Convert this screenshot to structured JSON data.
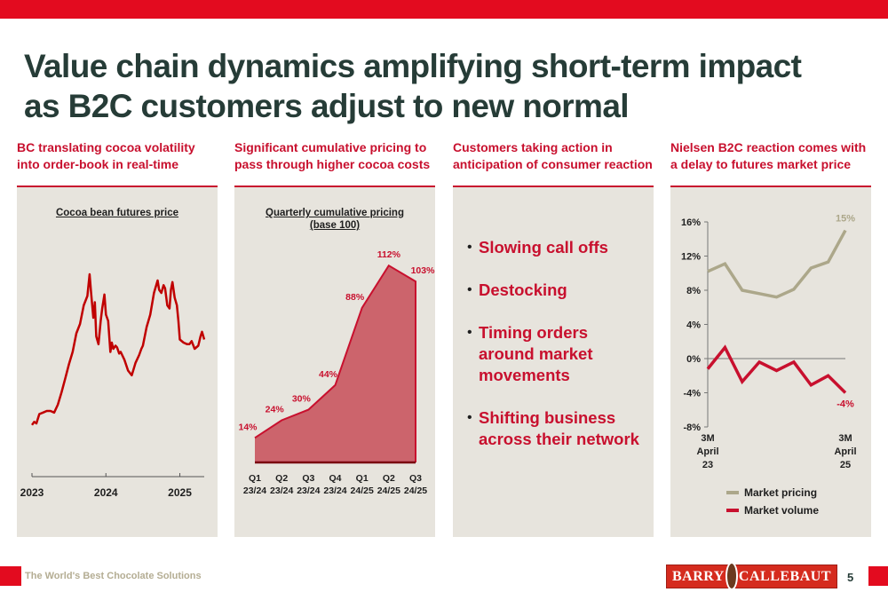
{
  "header": {
    "title_line1": "Value chain dynamics amplifying short-term impact",
    "title_line2": "as B2C customers adjust to new normal",
    "accent_color": "#e30b1f"
  },
  "columns": [
    {
      "heading_line1": "BC translating cocoa volatility",
      "heading_line2": "into order-book in real-time"
    },
    {
      "heading_line1": "Significant cumulative pricing to",
      "heading_line2": "pass through higher cocoa costs"
    },
    {
      "heading_line1": "Customers taking action in",
      "heading_line2": "anticipation of consumer reaction"
    },
    {
      "heading_line1": "Nielsen B2C reaction comes with",
      "heading_line2": "a delay to futures market price"
    }
  ],
  "bullets": [
    {
      "line1": "Slowing call offs"
    },
    {
      "line1": "Destocking"
    },
    {
      "line1": "Timing orders",
      "line2": "around market",
      "line3": "movements"
    },
    {
      "line1": "Shifting business",
      "line2": "across their network"
    }
  ],
  "chart_data": [
    {
      "type": "line",
      "title": "Cocoa bean futures price",
      "xlabel": "",
      "ylabel": "",
      "x_tick_labels": [
        "2023",
        "2024",
        "2025"
      ],
      "x_range": [
        2023.0,
        2025.33
      ],
      "y_axis_shown": false,
      "note": "Relative price index (no y-axis shown); values estimated from line shape, 0 = low, 100 = peak",
      "series": [
        {
          "name": "Cocoa bean futures",
          "color": "#c00000",
          "x": [
            2023.0,
            2023.03,
            2023.06,
            2023.1,
            2023.15,
            2023.2,
            2023.25,
            2023.3,
            2023.35,
            2023.4,
            2023.45,
            2023.5,
            2023.55,
            2023.6,
            2023.65,
            2023.7,
            2023.75,
            2023.78,
            2023.8,
            2023.83,
            2023.85,
            2023.87,
            2023.9,
            2023.93,
            2023.95,
            2023.98,
            2024.0,
            2024.03,
            2024.06,
            2024.08,
            2024.1,
            2024.13,
            2024.15,
            2024.18,
            2024.2,
            2024.25,
            2024.3,
            2024.35,
            2024.4,
            2024.45,
            2024.48,
            2024.5,
            2024.55,
            2024.6,
            2024.65,
            2024.7,
            2024.72,
            2024.75,
            2024.78,
            2024.8,
            2024.83,
            2024.86,
            2024.88,
            2024.9,
            2024.93,
            2024.96,
            2024.98,
            2025.0,
            2025.05,
            2025.1,
            2025.13,
            2025.16,
            2025.2,
            2025.25,
            2025.28,
            2025.3,
            2025.33
          ],
          "y": [
            3,
            5,
            4,
            10,
            11,
            12,
            12,
            11,
            16,
            24,
            33,
            42,
            50,
            62,
            68,
            80,
            86,
            100,
            88,
            72,
            82,
            60,
            55,
            70,
            78,
            87,
            74,
            70,
            50,
            56,
            52,
            54,
            53,
            49,
            50,
            45,
            38,
            35,
            43,
            48,
            52,
            54,
            66,
            74,
            88,
            96,
            90,
            88,
            93,
            91,
            80,
            78,
            90,
            95,
            85,
            80,
            70,
            58,
            56,
            55,
            55,
            57,
            52,
            54,
            60,
            63,
            58
          ]
        }
      ]
    },
    {
      "type": "area",
      "title": "Quarterly cumulative pricing",
      "subtitle": "(base 100)",
      "categories": [
        "Q1 23/24",
        "Q2 23/24",
        "Q3 23/24",
        "Q4 23/24",
        "Q1 24/25",
        "Q2 24/25",
        "Q3 24/25"
      ],
      "category_lines": [
        [
          "Q1",
          "23/24"
        ],
        [
          "Q2",
          "23/24"
        ],
        [
          "Q3",
          "23/24"
        ],
        [
          "Q4",
          "23/24"
        ],
        [
          "Q1",
          "24/25"
        ],
        [
          "Q2",
          "24/25"
        ],
        [
          "Q3",
          "24/25"
        ]
      ],
      "values": [
        14,
        24,
        30,
        44,
        88,
        112,
        103
      ],
      "data_labels": [
        "14%",
        "24%",
        "30%",
        "44%",
        "88%",
        "112%",
        "103%"
      ],
      "ylim": [
        0,
        115
      ],
      "fill_color": "#cc646c",
      "line_color": "#c8102e"
    },
    {
      "type": "line",
      "title": "",
      "y_tick_labels": [
        "16%",
        "12%",
        "8%",
        "4%",
        "0%",
        "-4%",
        "-8%"
      ],
      "y_ticks": [
        16,
        12,
        8,
        4,
        0,
        -4,
        -8
      ],
      "ylim": [
        -8,
        16
      ],
      "x_labels": {
        "start": [
          "3M",
          "April",
          "23"
        ],
        "end": [
          "3M",
          "April",
          "25"
        ]
      },
      "series": [
        {
          "name": "Market pricing",
          "color": "#aca78a",
          "values": [
            10.2,
            11.1,
            8.0,
            7.6,
            7.2,
            8.1,
            10.6,
            11.3,
            15.0
          ],
          "end_label": "15%"
        },
        {
          "name": "Market volume",
          "color": "#c8102e",
          "values": [
            -1.2,
            1.3,
            -2.7,
            -0.4,
            -1.4,
            -0.4,
            -3.1,
            -2.0,
            -4.0
          ],
          "end_label": "-4%"
        }
      ],
      "legend": "bottom",
      "zero_line": true
    }
  ],
  "footer": {
    "tagline": "The World's Best Chocolate Solutions",
    "logo_left": "BARRY",
    "logo_right": "CALLEBAUT",
    "page_number": "5"
  }
}
